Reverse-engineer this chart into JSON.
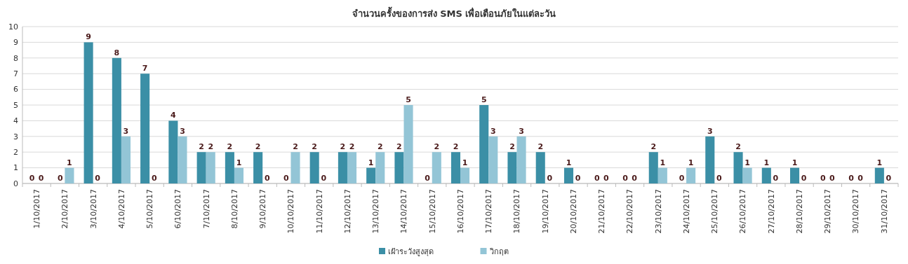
{
  "chart_data": {
    "type": "bar",
    "title": "จำนวนครั้งของการส่ง SMS เพื่อเตือนภัยในแต่ละวัน",
    "categories": [
      "1/10/2017",
      "2/10/2017",
      "3/10/2017",
      "4/10/2017",
      "5/10/2017",
      "6/10/2017",
      "7/10/2017",
      "8/10/2017",
      "9/10/2017",
      "10/10/2017",
      "11/10/2017",
      "12/10/2017",
      "13/10/2017",
      "14/10/2017",
      "15/10/2017",
      "16/10/2017",
      "17/10/2017",
      "18/10/2017",
      "19/10/2017",
      "20/10/2017",
      "21/10/2017",
      "22/10/2017",
      "23/10/2017",
      "24/10/2017",
      "25/10/2017",
      "26/10/2017",
      "27/10/2017",
      "28/10/2017",
      "29/10/2017",
      "30/10/2017",
      "31/10/2017"
    ],
    "series": [
      {
        "name": "เฝ้าระวังสูงสุด",
        "color": "#3b8fa6",
        "values": [
          0,
          0,
          9,
          8,
          7,
          4,
          2,
          2,
          2,
          0,
          2,
          2,
          1,
          2,
          0,
          2,
          5,
          2,
          2,
          1,
          0,
          0,
          2,
          0,
          3,
          2,
          1,
          1,
          0,
          0,
          1
        ]
      },
      {
        "name": "วิกฤต",
        "color": "#93c5d6",
        "values": [
          0,
          1,
          0,
          3,
          0,
          3,
          2,
          1,
          0,
          2,
          0,
          2,
          2,
          5,
          2,
          1,
          3,
          3,
          0,
          0,
          0,
          0,
          1,
          1,
          0,
          1,
          0,
          0,
          0,
          0,
          0
        ]
      }
    ],
    "ylim": [
      0,
      10
    ],
    "yticks": [
      0,
      1,
      2,
      3,
      4,
      5,
      6,
      7,
      8,
      9,
      10
    ],
    "grid": "y",
    "legend": "bottom",
    "data_labels": true
  }
}
